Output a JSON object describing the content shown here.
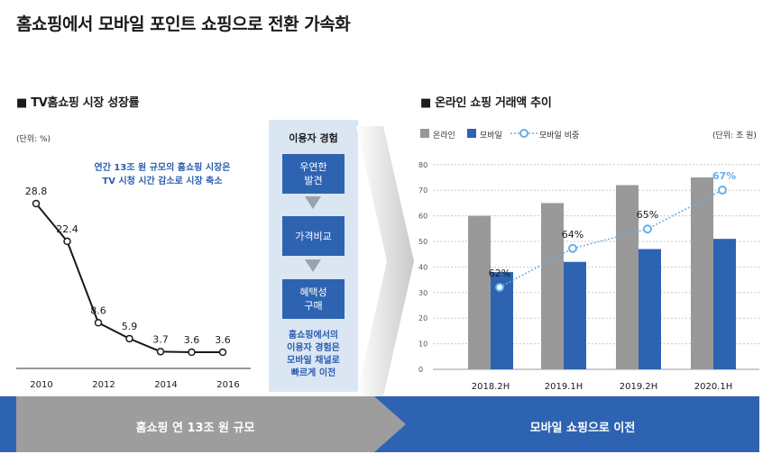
{
  "page_title": "홈쇼핑에서 모바일 포인트 쇼핑으로 전환 가속화",
  "left_section": {
    "title": "TV홈쇼핑 시장 성장률",
    "unit": "(단위: %)",
    "annotation_line1": "연간 13조 원 규모의 홈쇼핑 시장은",
    "annotation_line2": "TV 시청 시간 감소로 시장 축소"
  },
  "middle_section": {
    "header": "이용자 경험",
    "steps": [
      {
        "line1": "우연한",
        "line2": "발견"
      },
      {
        "line1": "가격비교",
        "line2": ""
      },
      {
        "line1": "혜택성",
        "line2": "구매"
      }
    ],
    "footer_lines": [
      "홈쇼핑에서의",
      "이용자 경험은",
      "모바일 채널로",
      "빠르게 이전"
    ]
  },
  "right_section": {
    "title": "온라인 쇼핑 거래액 추이",
    "unit": "(단위: 조 원)"
  },
  "banner": {
    "left_text": "홈쇼핑 연 13조 원 규모",
    "right_text": "모바일 쇼핑으로 이전"
  },
  "colors": {
    "online": "#999999",
    "mobile": "#2e63b2",
    "ratio": "#6aaee6",
    "banner_gray": "#9d9d9d",
    "banner_blue": "#2e63b2"
  },
  "chart_data": [
    {
      "type": "line",
      "title": "TV홈쇼핑 시장 성장률",
      "x": [
        "2010",
        "2011",
        "2012",
        "2013",
        "2014",
        "2015",
        "2016"
      ],
      "x_tick_labels": [
        "2010",
        "2012",
        "2014",
        "2016"
      ],
      "series": [
        {
          "values": [
            28.8,
            22.4,
            8.6,
            5.9,
            3.7,
            3.6,
            3.6
          ]
        }
      ],
      "data_labels": [
        "28.8",
        "22.4",
        "8.6",
        "5.9",
        "3.7",
        "3.6",
        "3.6"
      ],
      "ylim": [
        0,
        30
      ],
      "grid": false
    },
    {
      "type": "bar",
      "title": "온라인 쇼핑 거래액 추이",
      "categories": [
        "2018.2H",
        "2019.1H",
        "2019.2H",
        "2020.1H"
      ],
      "series": [
        {
          "name": "온라인",
          "values": [
            60,
            65,
            72,
            75
          ]
        },
        {
          "name": "모바일",
          "values": [
            38,
            42,
            47,
            51
          ]
        }
      ],
      "line_series": {
        "name": "모바일 비중",
        "values": [
          62,
          64,
          65,
          67
        ],
        "labels": [
          "62%",
          "64%",
          "65%",
          "67%"
        ]
      },
      "y_ticks": [
        "0",
        "10",
        "20",
        "30",
        "40",
        "50",
        "60",
        "70",
        "80"
      ],
      "ylim": [
        0,
        80
      ],
      "grid": true,
      "legend_position": "top-left"
    }
  ]
}
